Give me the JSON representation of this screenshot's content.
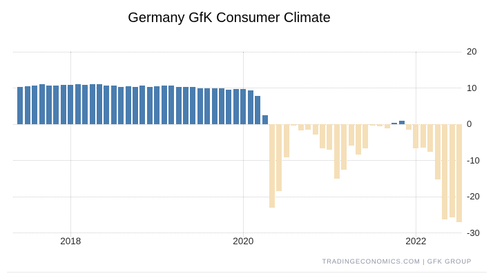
{
  "footer": {
    "watermark": "TRADINGECONOMICS.COM  |  GFK GROUP"
  },
  "colors": {
    "positive_bar": "#4A7DAF",
    "negative_bar": "#F5DFB8",
    "gridline": "#CCCCCC",
    "axis_text": "#262626",
    "title_text": "#000000",
    "watermark_text": "#8F94A3"
  },
  "chart_data": {
    "type": "bar",
    "title": "Germany GfK Consumer Climate",
    "xlabel": "",
    "ylabel": "",
    "ylim": [
      -30,
      20
    ],
    "yticks": [
      20,
      10,
      0,
      -10,
      -20,
      -30
    ],
    "xticks": [
      "2018",
      "2020",
      "2022"
    ],
    "grid": "dotted",
    "legend": "none",
    "bar_color_rule": "blue for values >= 0, tan for values < 0",
    "months": [
      "2017-06",
      "2017-07",
      "2017-08",
      "2017-09",
      "2017-10",
      "2017-11",
      "2017-12",
      "2018-01",
      "2018-02",
      "2018-03",
      "2018-04",
      "2018-05",
      "2018-06",
      "2018-07",
      "2018-08",
      "2018-09",
      "2018-10",
      "2018-11",
      "2018-12",
      "2019-01",
      "2019-02",
      "2019-03",
      "2019-04",
      "2019-05",
      "2019-06",
      "2019-07",
      "2019-08",
      "2019-09",
      "2019-10",
      "2019-11",
      "2019-12",
      "2020-01",
      "2020-02",
      "2020-03",
      "2020-04",
      "2020-05",
      "2020-06",
      "2020-07",
      "2020-08",
      "2020-09",
      "2020-10",
      "2020-11",
      "2020-12",
      "2021-01",
      "2021-02",
      "2021-03",
      "2021-04",
      "2021-05",
      "2021-06",
      "2021-07",
      "2021-08",
      "2021-09",
      "2021-10",
      "2021-11",
      "2021-12",
      "2022-01",
      "2022-02",
      "2022-03",
      "2022-04",
      "2022-05",
      "2022-06",
      "2022-07"
    ],
    "values": [
      10.2,
      10.4,
      10.7,
      11.0,
      10.7,
      10.7,
      10.8,
      10.8,
      11.0,
      10.8,
      11.0,
      11.0,
      10.6,
      10.6,
      10.3,
      10.5,
      10.3,
      10.6,
      10.2,
      10.4,
      10.6,
      10.7,
      10.2,
      10.3,
      10.2,
      9.9,
      9.9,
      9.9,
      9.9,
      9.6,
      9.8,
      9.8,
      9.3,
      7.9,
      2.4,
      -23.1,
      -18.5,
      -9.2,
      -0.4,
      -1.8,
      -1.6,
      -2.8,
      -6.6,
      -7.1,
      -15.1,
      -12.6,
      -5.9,
      -8.4,
      -6.6,
      -0.3,
      -0.5,
      -1.1,
      0.4,
      1.0,
      -1.5,
      -6.6,
      -6.5,
      -7.7,
      -15.3,
      -26.3,
      -25.8,
      -27.0
    ]
  }
}
